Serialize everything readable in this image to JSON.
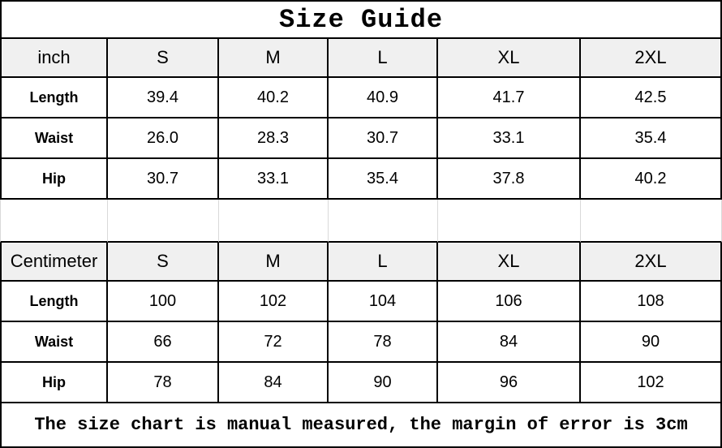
{
  "title": "Size Guide",
  "size_headers": [
    "S",
    "M",
    "L",
    "XL",
    "2XL"
  ],
  "tables": [
    {
      "unit_label": "inch",
      "rows": [
        {
          "label": "Length",
          "values": [
            "39.4",
            "40.2",
            "40.9",
            "41.7",
            "42.5"
          ]
        },
        {
          "label": "Waist",
          "values": [
            "26.0",
            "28.3",
            "30.7",
            "33.1",
            "35.4"
          ]
        },
        {
          "label": "Hip",
          "values": [
            "30.7",
            "33.1",
            "35.4",
            "37.8",
            "40.2"
          ]
        }
      ]
    },
    {
      "unit_label": "Centimeter",
      "rows": [
        {
          "label": "Length",
          "values": [
            "100",
            "102",
            "104",
            "106",
            "108"
          ]
        },
        {
          "label": "Waist",
          "values": [
            "66",
            "72",
            "78",
            "84",
            "90"
          ]
        },
        {
          "label": "Hip",
          "values": [
            "78",
            "84",
            "90",
            "96",
            "102"
          ]
        }
      ]
    }
  ],
  "footer_note": "The size chart is manual measured, the margin of error is 3cm",
  "colors": {
    "background": "#ffffff",
    "text": "#000000",
    "table_border": "#000000",
    "header_bg": "#f0f0f0",
    "gap_gridline": "#d9d9d9"
  }
}
